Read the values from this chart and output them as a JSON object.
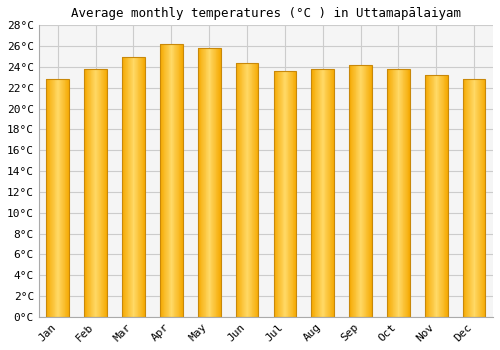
{
  "title": "Average monthly temperatures (°C ) in Uttamapālaiyam",
  "months": [
    "Jan",
    "Feb",
    "Mar",
    "Apr",
    "May",
    "Jun",
    "Jul",
    "Aug",
    "Sep",
    "Oct",
    "Nov",
    "Dec"
  ],
  "temperatures": [
    22.8,
    23.8,
    25.0,
    26.2,
    25.8,
    24.4,
    23.6,
    23.8,
    24.2,
    23.8,
    23.2,
    22.8
  ],
  "bar_color_center": "#FFD966",
  "bar_color_edge": "#F5A800",
  "bar_edge_color": "#C8880A",
  "ylim": [
    0,
    28
  ],
  "ytick_step": 2,
  "background_color": "#ffffff",
  "plot_bg_color": "#f5f5f5",
  "grid_color": "#cccccc",
  "title_fontsize": 9,
  "tick_fontsize": 8,
  "font_family": "monospace",
  "bar_width": 0.6
}
